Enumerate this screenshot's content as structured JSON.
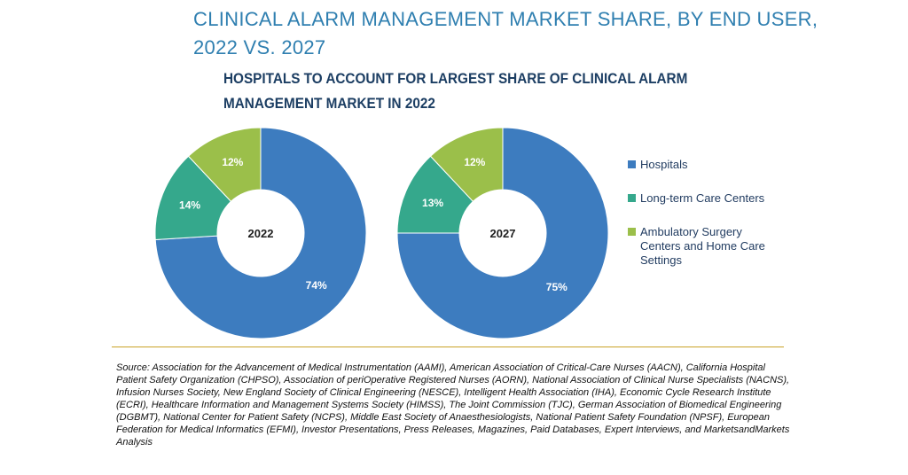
{
  "title": "CLINICAL ALARM MANAGEMENT MARKET SHARE, BY END USER, 2022 VS. 2027",
  "subtitle": "HOSPITALS TO ACCOUNT FOR LARGEST SHARE OF CLINICAL ALARM MANAGEMENT MARKET IN 2022",
  "colors": {
    "hospitals": "#3d7cbf",
    "long_term": "#35a88c",
    "ambulatory": "#9bbf4a",
    "rule": "#c9a227"
  },
  "legend": [
    {
      "label": "Hospitals",
      "color": "#3d7cbf"
    },
    {
      "label": "Long-term Care Centers",
      "color": "#35a88c"
    },
    {
      "label": "Ambulatory Surgery Centers and Home Care Settings",
      "color": "#9bbf4a"
    }
  ],
  "chart_data": [
    {
      "type": "pie",
      "center_label": "2022",
      "slices": [
        {
          "name": "Hospitals",
          "value": 74,
          "label": "74%",
          "color": "#3d7cbf"
        },
        {
          "name": "Long-term Care Centers",
          "value": 14,
          "label": "14%",
          "color": "#35a88c"
        },
        {
          "name": "Ambulatory Surgery Centers and Home Care Settings",
          "value": 12,
          "label": "12%",
          "color": "#9bbf4a"
        }
      ]
    },
    {
      "type": "pie",
      "center_label": "2027",
      "slices": [
        {
          "name": "Hospitals",
          "value": 75,
          "label": "75%",
          "color": "#3d7cbf"
        },
        {
          "name": "Long-term Care Centers",
          "value": 13,
          "label": "13%",
          "color": "#35a88c"
        },
        {
          "name": "Ambulatory Surgery Centers and Home Care Settings",
          "value": 12,
          "label": "12%",
          "color": "#9bbf4a"
        }
      ]
    }
  ],
  "source": "Source: Association for the Advancement of Medical Instrumentation (AAMI), American Association of Critical-Care Nurses (AACN), California Hospital Patient Safety Organization (CHPSO), Association of periOperative Registered Nurses (AORN), National Association of Clinical Nurse Specialists (NACNS), Infusion Nurses Society, New England Society of Clinical Engineering (NESCE), Intelligent Health Association (IHA), Economic Cycle Research Institute (ECRI), Healthcare Information and Management Systems Society (HIMSS), The Joint Commission (TJC), German Association of Biomedical Engineering (DGBMT), National Center for Patient Safety (NCPS), Middle East Society of Anaesthesiologists, National Patient Safety Foundation (NPSF), European Federation for Medical Informatics (EFMI), Investor Presentations, Press Releases, Magazines, Paid Databases, Expert Interviews, and MarketsandMarkets Analysis"
}
